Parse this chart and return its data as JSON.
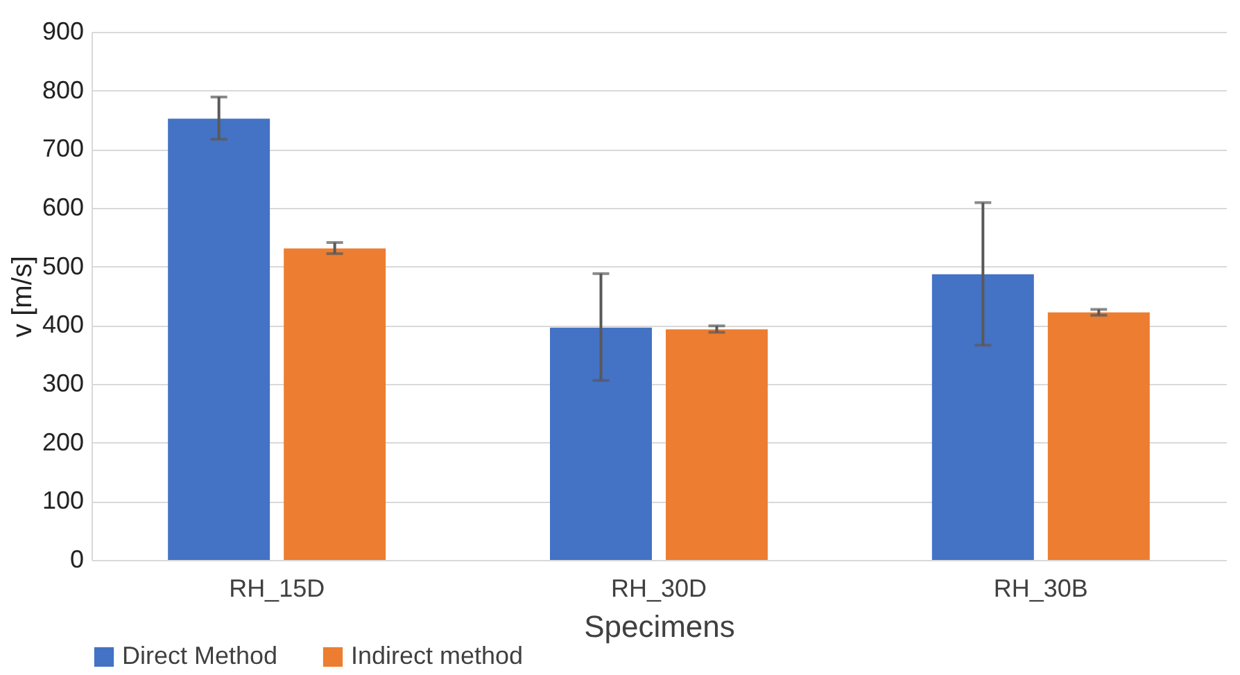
{
  "chart_data": {
    "type": "bar",
    "xlabel": "Specimens",
    "ylabel": "v [m/s]",
    "categories": [
      "RH_15D",
      "RH_30D",
      "RH_30B"
    ],
    "series": [
      {
        "name": "Direct Method",
        "color": "#4472c4",
        "values": [
          752,
          396,
          487
        ],
        "errors": [
          [
            717,
            789
          ],
          [
            306,
            488
          ],
          [
            366,
            609
          ]
        ]
      },
      {
        "name": "Indirect method",
        "color": "#ed7d31",
        "values": [
          531,
          393,
          422
        ],
        "errors": [
          [
            522,
            541
          ],
          [
            388,
            399
          ],
          [
            417,
            427
          ]
        ]
      }
    ],
    "ylim": [
      0,
      900
    ],
    "yticks": [
      0,
      100,
      200,
      300,
      400,
      500,
      600,
      700,
      800,
      900
    ],
    "grid": "y",
    "legend": "bottom"
  }
}
